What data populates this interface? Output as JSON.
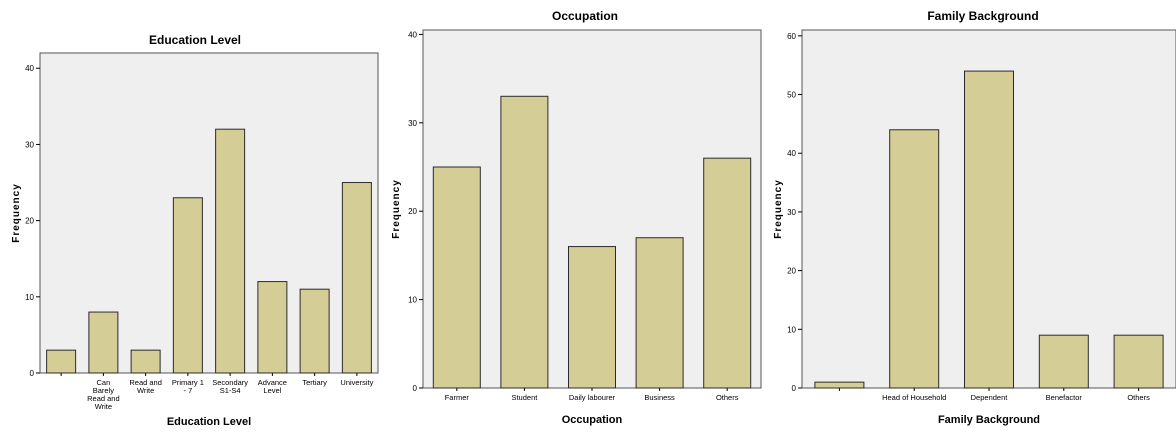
{
  "colors": {
    "bar": "#d4cd96",
    "plot_bg": "#efefef"
  },
  "chart_data": [
    {
      "type": "bar",
      "title": "Education Level",
      "xlabel": "Education Level",
      "ylabel": "Frequency",
      "ylim": [
        0,
        42
      ],
      "yticks": [
        0,
        10,
        20,
        30,
        40
      ],
      "categories": [
        "",
        "Can Barely Read and Write",
        "Read and Write",
        "Primary 1 - 7",
        "Secondary S1-S4",
        "Advance Level",
        "Tertiary",
        "University"
      ],
      "values": [
        3,
        8,
        3,
        23,
        32,
        12,
        11,
        25
      ],
      "grid": false
    },
    {
      "type": "bar",
      "title": "Occupation",
      "xlabel": "Occupation",
      "ylabel": "Frequency",
      "ylim": [
        0,
        40.5
      ],
      "yticks": [
        0,
        10,
        20,
        30,
        40
      ],
      "categories": [
        "Farmer",
        "Student",
        "Daily labourer",
        "Business",
        "Others"
      ],
      "values": [
        25,
        33,
        16,
        17,
        26
      ],
      "grid": false
    },
    {
      "type": "bar",
      "title": "Family Background",
      "xlabel": "Family Background",
      "ylabel": "Frequency",
      "ylim": [
        0,
        61
      ],
      "yticks": [
        0,
        10,
        20,
        30,
        40,
        50,
        60
      ],
      "categories": [
        "",
        "Head of Household",
        "Dependent",
        "Benefactor",
        "Others"
      ],
      "values": [
        1,
        44,
        54,
        9,
        9
      ],
      "grid": false
    }
  ]
}
